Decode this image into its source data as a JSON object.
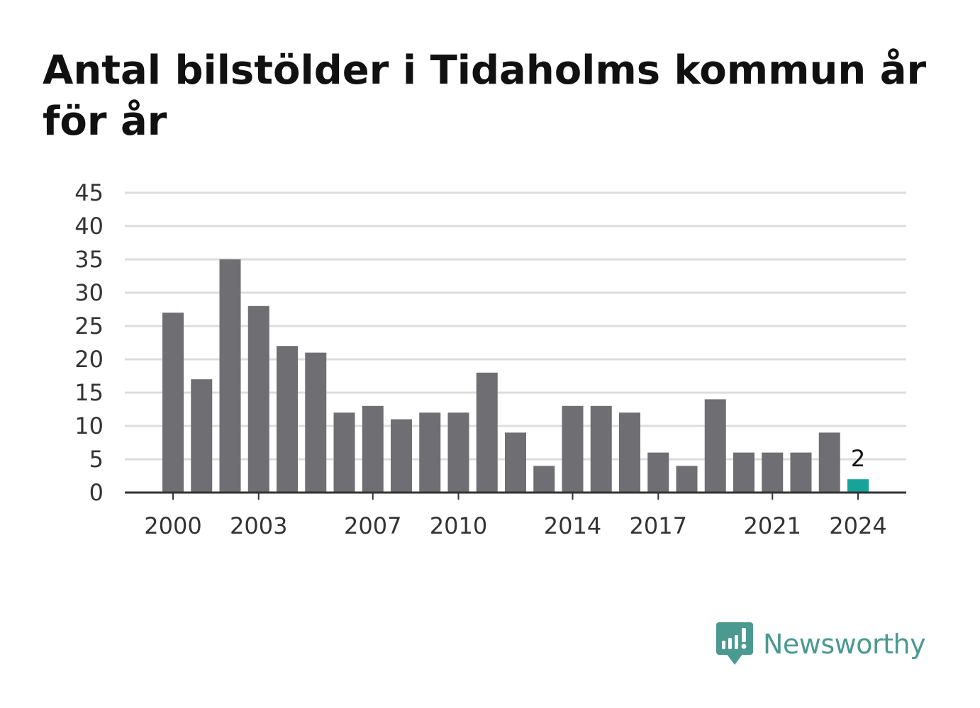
{
  "title": "Antal bilstölder i Tidaholms kommun år för år",
  "brand": {
    "name": "Newsworthy",
    "icon": "newsworthy-logo-icon",
    "color": "#4a9a91"
  },
  "chart_data": {
    "type": "bar",
    "title": "Antal bilstölder i Tidaholms kommun år för år",
    "xlabel": "",
    "ylabel": "",
    "x": [
      2000,
      2001,
      2002,
      2003,
      2004,
      2005,
      2006,
      2007,
      2008,
      2009,
      2010,
      2011,
      2012,
      2013,
      2014,
      2015,
      2016,
      2017,
      2018,
      2019,
      2020,
      2021,
      2022,
      2023,
      2024
    ],
    "values": [
      27,
      17,
      35,
      28,
      22,
      21,
      12,
      13,
      11,
      12,
      12,
      18,
      9,
      4,
      13,
      13,
      12,
      6,
      4,
      14,
      6,
      6,
      6,
      9,
      2
    ],
    "ylim": [
      0,
      45
    ],
    "yticks": [
      0,
      5,
      10,
      15,
      20,
      25,
      30,
      35,
      40,
      45
    ],
    "xticks": [
      2000,
      2003,
      2007,
      2010,
      2014,
      2017,
      2021,
      2024
    ],
    "grid": true,
    "bar_color": "#6e6e73",
    "highlight_color": "#16a39a",
    "highlight_x": 2024,
    "annotations": [
      {
        "x": 2024,
        "text": "2"
      }
    ]
  }
}
